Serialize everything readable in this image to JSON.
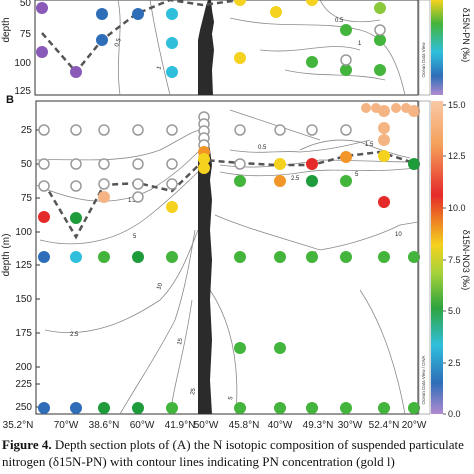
{
  "figure": {
    "caption_label": "Figure 4.",
    "caption_text": "Depth section plots of (A) the N isotopic composition of suspended particulate",
    "caption_line2": "nitrogen (δ15N-PN) with contour lines indicating PN concentration (gold l)"
  },
  "panel_a": {
    "depth_label": "depth",
    "y_ticks": [
      "50",
      "75",
      "100",
      "125"
    ],
    "side_label": "Ocean Data View",
    "cbar_label": "δ15N-PN (‰)"
  },
  "panel_b": {
    "letter": "B",
    "y_label": "depth (m)",
    "y_ticks": [
      "25",
      "50",
      "75",
      "100",
      "125",
      "150",
      "175",
      "200",
      "225",
      "250"
    ],
    "x_ticks_top": [
      "70°W",
      "60°W",
      "50°W",
      "40°W",
      "30°W",
      "20°W"
    ],
    "x_ticks_bottom": [
      "35.2°N",
      "38.6°N",
      "41.9°N",
      "45.8°N",
      "49.3°N",
      "52.4°N"
    ],
    "contour_labels": [
      "0.5",
      "1",
      "1.5",
      "2.5",
      "5",
      "10",
      "15",
      "25"
    ],
    "side_label": "Ocean Data View / DIVA",
    "cbar_label": "δ15N-NO3 (‰)",
    "cbar_ticks": [
      "15.0",
      "12.5",
      "10.0",
      "7.5",
      "5.0",
      "2.5",
      "0.0"
    ]
  },
  "colors": {
    "grey": "#9a9a9a",
    "dark_green": "#1e9b3a",
    "green": "#43b43c",
    "lime": "#8cc83c",
    "yellow": "#f5d21e",
    "orange": "#f2962a",
    "red": "#e52a2a",
    "salmon": "#f5b483",
    "blue": "#2e6eb8",
    "cyan": "#2fbfdc",
    "purple": "#8a5ab8",
    "ridge": "#2b2b2b"
  }
}
